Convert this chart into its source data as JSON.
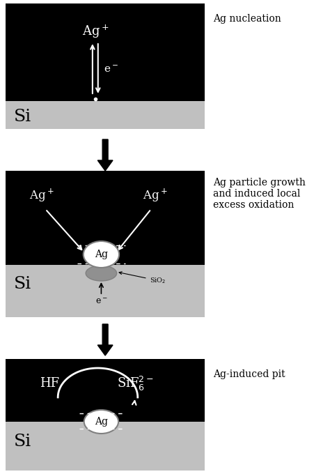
{
  "bg_color": "#000000",
  "si_color": "#c0c0c0",
  "white": "#ffffff",
  "black": "#000000",
  "fig_bg": "#ffffff",
  "gray_shadow": "#909090",
  "panel1": {
    "title": "Ag nucleation",
    "ag_ion_label": "Ag$^+$",
    "e_label": "e$^-$"
  },
  "panel2": {
    "title": "Ag particle growth\nand induced local\nexcess oxidation",
    "ag_ion_left": "Ag$^+$",
    "ag_ion_right": "Ag$^+$",
    "ag_label": "Ag",
    "sio2_label": "SiO$_2$",
    "e_label": "e$^-$"
  },
  "panel3": {
    "title": "Ag-induced pit",
    "hf_label": "HF",
    "sif_label": "SiF$_6^{2-}$",
    "ag_label": "Ag"
  },
  "si_label": "Si",
  "figsize": [
    4.74,
    6.8
  ],
  "dpi": 100
}
